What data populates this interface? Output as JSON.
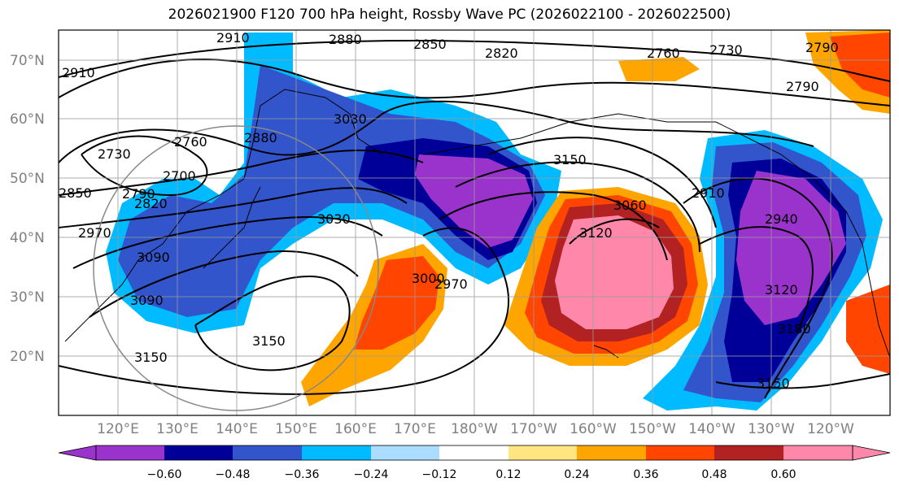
{
  "title": "2026021900 F120 700 hPa height, Rossby Wave PC (2026022100 - 2026022500)",
  "lat_labels": [
    "70°N",
    "60°N",
    "50°N",
    "40°N",
    "30°N",
    "20°N"
  ],
  "lon_labels": [
    "120°E",
    "130°E",
    "140°E",
    "150°E",
    "160°E",
    "170°E",
    "180°W",
    "170°W",
    "160°W",
    "150°W",
    "140°W",
    "130°W",
    "120°W"
  ],
  "colorbar": {
    "colors": [
      "#9933cc",
      "#000099",
      "#3355cc",
      "#00bbff",
      "#aaddff",
      "#ffffff",
      "#ffe680",
      "#ffa500",
      "#ff4500",
      "#b22222",
      "#ff88aa"
    ],
    "ticks": [
      "−0.60",
      "−0.48",
      "−0.36",
      "−0.24",
      "−0.12",
      "0.12",
      "0.24",
      "0.36",
      "0.48",
      "0.60"
    ]
  },
  "contour_labels": [
    "2910",
    "2910",
    "2880",
    "2850",
    "2820",
    "2760",
    "2730",
    "2790",
    "2790",
    "2760",
    "2730",
    "2700",
    "2850",
    "2790",
    "2820",
    "2880",
    "3030",
    "3150",
    "3060",
    "3120",
    "2910",
    "2940",
    "3120",
    "3180",
    "3150",
    "2970",
    "2970",
    "3000",
    "3030",
    "3090",
    "3090",
    "3150",
    "3150"
  ]
}
